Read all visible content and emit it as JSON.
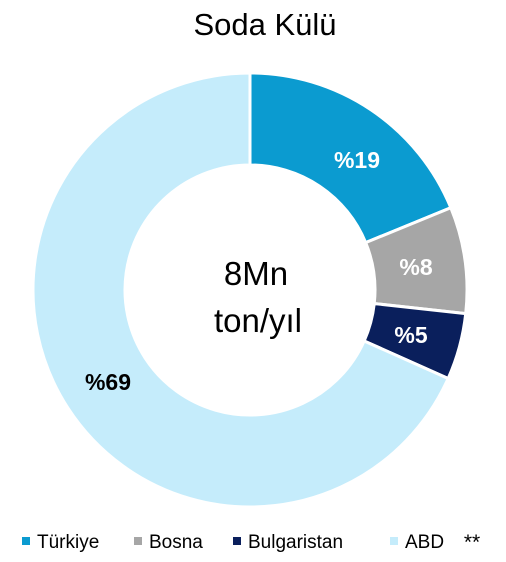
{
  "chart_data": {
    "type": "pie",
    "title": "Soda Külü",
    "center_label": [
      "8Mn",
      "ton/yıl"
    ],
    "categories": [
      "Türkiye",
      "Bosna",
      "Bulgaristan",
      "ABD"
    ],
    "values": [
      19,
      8,
      5,
      69
    ],
    "labels": [
      "%19",
      "%8",
      "%5",
      "%69"
    ],
    "colors": [
      "#0b9bd0",
      "#a6a6a6",
      "#0a1f5c",
      "#c5ecfb"
    ],
    "label_colors": [
      "#ffffff",
      "#ffffff",
      "#ffffff",
      "#000000"
    ],
    "legend_position": "bottom",
    "footnote": "**"
  }
}
